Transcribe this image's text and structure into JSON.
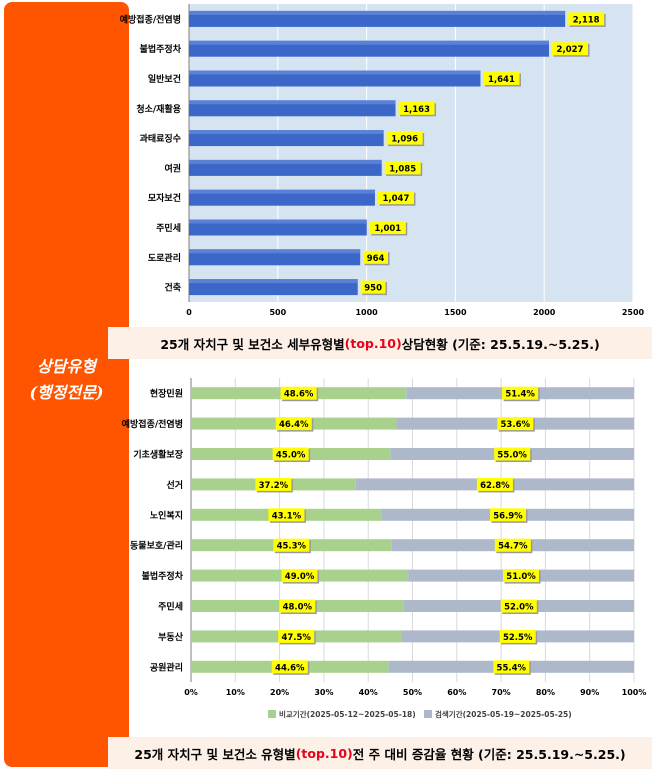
{
  "banner": {
    "line1": "상담유형",
    "line2": "(행정전문)"
  },
  "chart_data": [
    {
      "type": "bar",
      "orientation": "horizontal",
      "categories": [
        "예방접종/전염병",
        "불법주정차",
        "일반보건",
        "청소/재활용",
        "과태료징수",
        "여권",
        "모자보건",
        "주민세",
        "도로관리",
        "건축"
      ],
      "values": [
        2118,
        2027,
        1641,
        1163,
        1096,
        1085,
        1047,
        1001,
        964,
        950
      ],
      "value_labels": [
        "2,118",
        "2,027",
        "1,641",
        "1,163",
        "1,096",
        "1,085",
        "1,047",
        "1,001",
        "964",
        "950"
      ],
      "xlim": [
        0,
        2500
      ],
      "xticks": [
        "0",
        "500",
        "1000",
        "1500",
        "2000",
        "2500"
      ],
      "grid": true,
      "colors": {
        "bar": "#3b67c8",
        "label_bg": "#ffff00",
        "plot_bg": "#d6e4f2"
      }
    },
    {
      "type": "bar",
      "orientation": "horizontal",
      "stacked": "percent",
      "categories": [
        "현장민원",
        "예방접종/전염병",
        "기초생활보장",
        "선거",
        "노인복지",
        "동물보호/관리",
        "불법주정차",
        "주민세",
        "부동산",
        "공원관리"
      ],
      "series": [
        {
          "name": "비교기간(2025-05-12~2025-05-18)",
          "values": [
            48.6,
            46.4,
            45.0,
            37.2,
            43.1,
            45.3,
            49.0,
            48.0,
            47.5,
            44.6
          ],
          "labels": [
            "48.6%",
            "46.4%",
            "45.0%",
            "37.2%",
            "43.1%",
            "45.3%",
            "49.0%",
            "48.0%",
            "47.5%",
            "44.6%"
          ]
        },
        {
          "name": "검색기간(2025-05-19~2025-05-25)",
          "values": [
            51.4,
            53.6,
            55.0,
            62.8,
            56.9,
            54.7,
            51.0,
            52.0,
            52.5,
            55.4
          ],
          "labels": [
            "51.4%",
            "53.6%",
            "55.0%",
            "62.8%",
            "56.9%",
            "54.7%",
            "51.0%",
            "52.0%",
            "52.5%",
            "55.4%"
          ]
        }
      ],
      "xlim": [
        0,
        100
      ],
      "xticks": [
        "0%",
        "10%",
        "20%",
        "30%",
        "40%",
        "50%",
        "60%",
        "70%",
        "80%",
        "90%",
        "100%"
      ],
      "legend": "bottom",
      "colors": {
        "series1": "#a9d18e",
        "series2": "#adb9ca",
        "label_bg": "#ffff00"
      }
    }
  ],
  "captions": [
    {
      "pre": "25개 자치구 및 보건소 세부유형별",
      "hl": "(top.10)",
      "post": " 상담현황  (기준: 25.5.19.~5.25.)"
    },
    {
      "pre": "25개 자치구 및 보건소 유형별",
      "hl": "(top.10)",
      "post": " 전 주 대비 증감율 현황 (기준: 25.5.19.~5.25.)"
    }
  ]
}
